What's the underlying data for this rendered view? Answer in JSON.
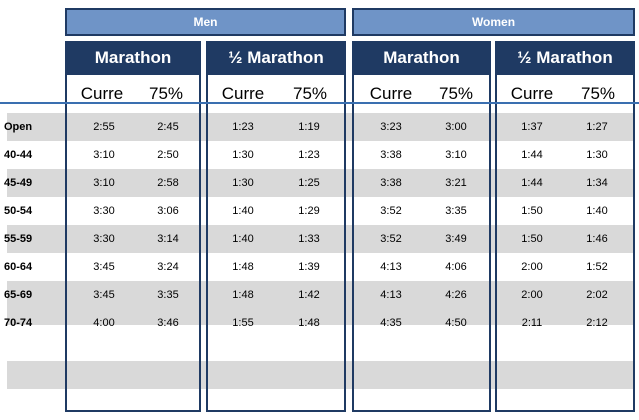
{
  "groups": {
    "men": "Men",
    "women": "Women"
  },
  "columns": {
    "men_marathon": "Marathon",
    "men_half": "½ Marathon",
    "women_marathon": "Marathon",
    "women_half": "½ Marathon"
  },
  "sub_labels": {
    "current": "Curre",
    "pct": "75%"
  },
  "rows": [
    {
      "label": "Open",
      "mm_c": "2:55",
      "mm_p": "2:45",
      "mh_c": "1:23",
      "mh_p": "1:19",
      "wm_c": "3:23",
      "wm_p": "3:00",
      "wh_c": "1:37",
      "wh_p": "1:27"
    },
    {
      "label": "40-44",
      "mm_c": "3:10",
      "mm_p": "2:50",
      "mh_c": "1:30",
      "mh_p": "1:23",
      "wm_c": "3:38",
      "wm_p": "3:10",
      "wh_c": "1:44",
      "wh_p": "1:30"
    },
    {
      "label": "45-49",
      "mm_c": "3:10",
      "mm_p": "2:58",
      "mh_c": "1:30",
      "mh_p": "1:25",
      "wm_c": "3:38",
      "wm_p": "3:21",
      "wh_c": "1:44",
      "wh_p": "1:34"
    },
    {
      "label": "50-54",
      "mm_c": "3:30",
      "mm_p": "3:06",
      "mh_c": "1:40",
      "mh_p": "1:29",
      "wm_c": "3:52",
      "wm_p": "3:35",
      "wh_c": "1:50",
      "wh_p": "1:40"
    },
    {
      "label": "55-59",
      "mm_c": "3:30",
      "mm_p": "3:14",
      "mh_c": "1:40",
      "mh_p": "1:33",
      "wm_c": "3:52",
      "wm_p": "3:49",
      "wh_c": "1:50",
      "wh_p": "1:46"
    },
    {
      "label": "60-64",
      "mm_c": "3:45",
      "mm_p": "3:24",
      "mh_c": "1:48",
      "mh_p": "1:39",
      "wm_c": "4:13",
      "wm_p": "4:06",
      "wh_c": "2:00",
      "wh_p": "1:52"
    },
    {
      "label": "65-69",
      "mm_c": "3:45",
      "mm_p": "3:35",
      "mh_c": "1:48",
      "mh_p": "1:42",
      "wm_c": "4:13",
      "wm_p": "4:26",
      "wh_c": "2:00",
      "wh_p": "2:02"
    },
    {
      "label": "70-74",
      "mm_c": "4:00",
      "mm_p": "3:46",
      "mh_c": "1:55",
      "mh_p": "1:48",
      "wm_c": "4:35",
      "wm_p": "4:50",
      "wh_c": "2:11",
      "wh_p": "2:12"
    }
  ],
  "colors": {
    "header_dark": "#1f3a63",
    "header_light": "#6f94c7",
    "stripe": "#d9d9d9",
    "rule": "#3a6fb0"
  }
}
